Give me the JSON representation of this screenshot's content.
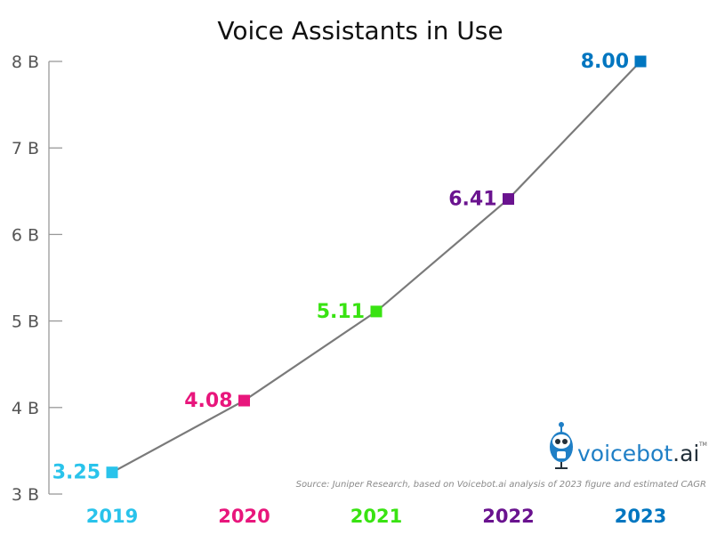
{
  "chart_data": {
    "type": "line",
    "title": "Voice Assistants in Use",
    "xlabel": "",
    "ylabel": "",
    "categories": [
      "2019",
      "2020",
      "2021",
      "2022",
      "2023"
    ],
    "values": [
      3.25,
      4.08,
      5.11,
      6.41,
      8.0
    ],
    "data_labels": [
      "3.25",
      "4.08",
      "5.11",
      "6.41",
      "8.00"
    ],
    "point_colors": [
      "#29c3eb",
      "#e8167c",
      "#39e312",
      "#6a138f",
      "#0076c0"
    ],
    "line_color": "#7a7a7a",
    "ylim": [
      3,
      8
    ],
    "yticks": [
      3,
      4,
      5,
      6,
      7,
      8
    ],
    "ytick_labels": [
      "3 B",
      "4 B",
      "5 B",
      "6 B",
      "7 B",
      "8 B"
    ],
    "grid": false,
    "legend": "none",
    "source": "Source: Juniper Research, based on Voicebot.ai analysis of 2023 figure and estimated CAGR"
  },
  "logo": {
    "text_main": "voicebot",
    "text_suffix": ".ai",
    "trademark": "TM",
    "icon": "robot-microphone-icon"
  }
}
